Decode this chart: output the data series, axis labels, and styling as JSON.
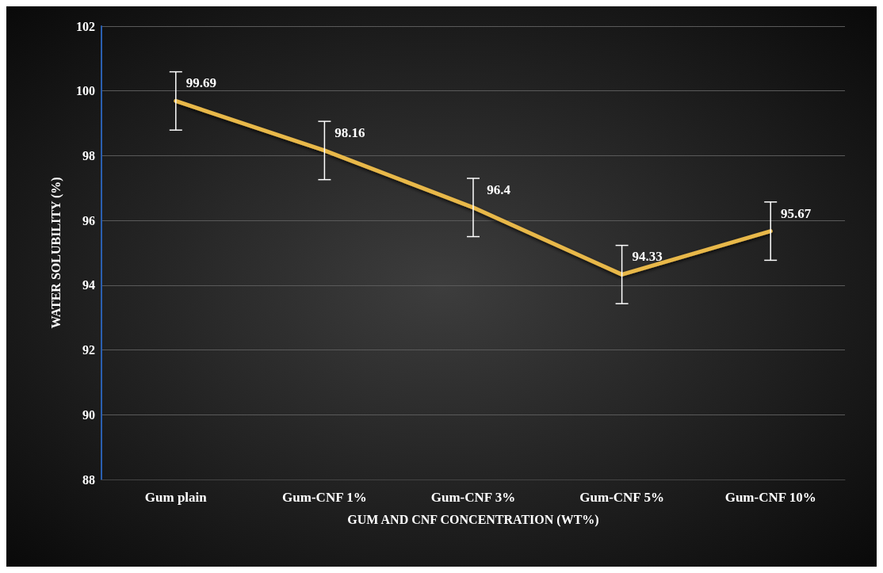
{
  "chart_data": {
    "type": "line",
    "xlabel": "GUM AND CNF CONCENTRATION (WT%)",
    "ylabel": "WATER SOLUBILITY (%)",
    "categories": [
      "Gum plain",
      "Gum-CNF 1%",
      "Gum-CNF 3%",
      "Gum-CNF 5%",
      "Gum-CNF 10%"
    ],
    "series": [
      {
        "color": "#e8b84a",
        "values": [
          99.69,
          98.16,
          96.4,
          94.33,
          95.67
        ],
        "errors": [
          0.9,
          0.9,
          0.9,
          0.9,
          0.9
        ]
      }
    ],
    "ylim": [
      88,
      102
    ],
    "yticks": [
      88,
      90,
      92,
      94,
      96,
      98,
      100,
      102
    ],
    "grid": "y",
    "data_labels": true,
    "marker": "none",
    "line_style": "solid"
  }
}
